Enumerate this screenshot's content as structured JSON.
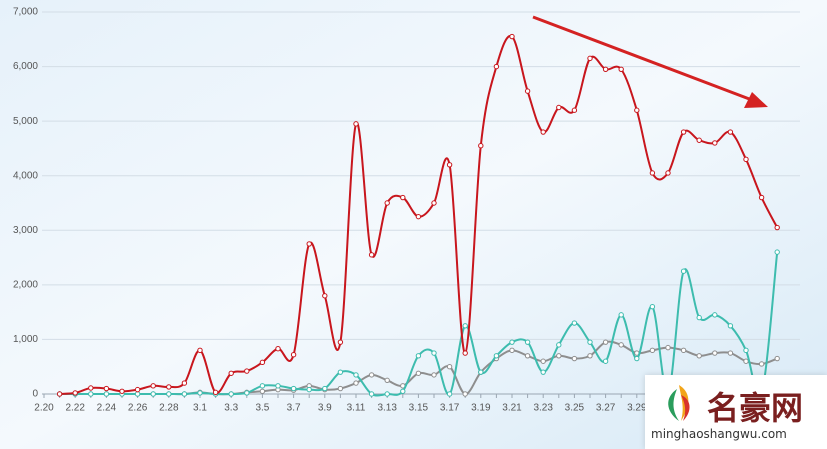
{
  "chart_data": {
    "type": "line",
    "categories": [
      "2.20",
      null,
      "2.22",
      null,
      "2.24",
      null,
      "2.26",
      null,
      "2.28",
      null,
      "3.1",
      null,
      "3.3",
      null,
      "3.5",
      null,
      "3.7",
      null,
      "3.9",
      null,
      "3.11",
      null,
      "3.13",
      null,
      "3.15",
      null,
      "3.17",
      null,
      "3.19",
      null,
      "3.21",
      null,
      "3.23",
      null,
      "3.25",
      null,
      "3.27",
      null,
      "3.29",
      null,
      null,
      null,
      null,
      null,
      null,
      null,
      null,
      null
    ],
    "series": [
      {
        "color": "#c8161d",
        "values": [
          null,
          0,
          20,
          110,
          100,
          50,
          80,
          150,
          130,
          200,
          800,
          30,
          380,
          420,
          580,
          830,
          720,
          2750,
          1800,
          950,
          4950,
          2550,
          3500,
          3600,
          3250,
          3500,
          4200,
          750,
          4550,
          6000,
          6550,
          5550,
          4800,
          5250,
          5200,
          6150,
          5950,
          5950,
          5200,
          4050,
          4050,
          4800,
          4650,
          4600,
          4800,
          4300,
          3600,
          3050
        ]
      },
      {
        "color": "#3dbcae",
        "values": [
          null,
          0,
          0,
          0,
          0,
          0,
          0,
          0,
          0,
          0,
          20,
          0,
          0,
          20,
          150,
          150,
          100,
          80,
          100,
          400,
          350,
          0,
          0,
          50,
          700,
          750,
          0,
          1250,
          400,
          700,
          950,
          950,
          400,
          900,
          1300,
          950,
          600,
          1450,
          650,
          1600,
          0,
          2250,
          1400,
          1450,
          1250,
          800,
          0,
          2600
        ]
      },
      {
        "color": "#8e8e8e",
        "values": [
          null,
          0,
          0,
          0,
          0,
          0,
          0,
          0,
          0,
          0,
          30,
          0,
          0,
          30,
          50,
          80,
          70,
          150,
          80,
          100,
          200,
          350,
          250,
          150,
          380,
          350,
          500,
          0,
          400,
          650,
          800,
          700,
          600,
          700,
          650,
          700,
          950,
          900,
          750,
          800,
          850,
          800,
          700,
          750,
          750,
          600,
          550,
          650
        ]
      }
    ],
    "ylim": [
      0,
      7000
    ],
    "yticks": [
      0,
      {
        "value": 1000,
        "label": "1,000"
      },
      {
        "value": 2000,
        "label": "2,000"
      },
      {
        "value": 3000,
        "label": "3,000"
      },
      {
        "value": 4000,
        "label": "4,000"
      },
      {
        "value": 5000,
        "label": "5,000"
      },
      {
        "value": 6000,
        "label": "6,000"
      },
      {
        "value": 7000,
        "label": "7,000"
      }
    ],
    "grid": true
  },
  "watermark": {
    "title": "名豪网",
    "url": "minghaoshangwu.com"
  }
}
